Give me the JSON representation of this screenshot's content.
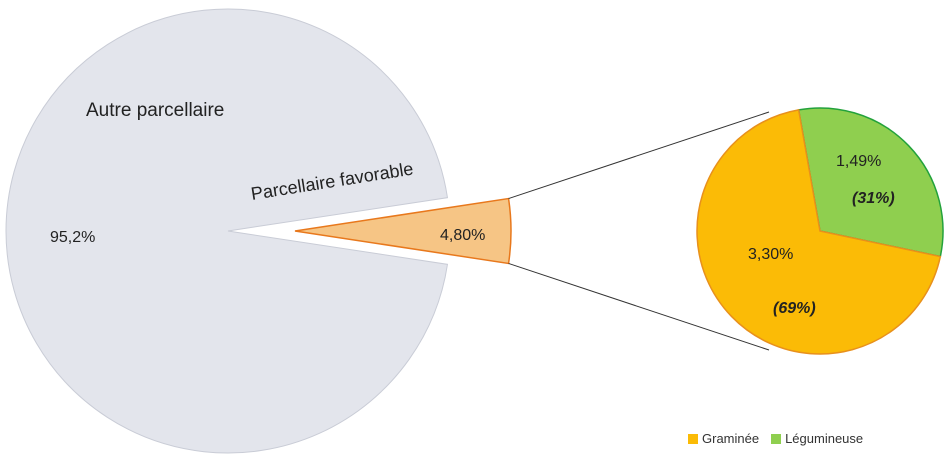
{
  "chart_data": {
    "type": "pie",
    "main_pie": {
      "slices": [
        {
          "label": "Autre parcellaire",
          "value": 95.2,
          "value_label": "95,2%",
          "color": "#e3e5ec",
          "stroke": "#c9ccd6"
        },
        {
          "label": "Parcellaire favorable",
          "value": 4.8,
          "value_label": "4,80%",
          "color": "#f6c585",
          "stroke": "#e8781c"
        }
      ]
    },
    "breakdown_pie": {
      "of": "Parcellaire favorable",
      "slices": [
        {
          "label": "Graminée",
          "value": 3.3,
          "value_label": "3,30%",
          "share_label": "(69%)",
          "color": "#fbbb06",
          "stroke": "#e8901c"
        },
        {
          "label": "Légumineuse",
          "value": 1.49,
          "value_label": "1,49%",
          "share_label": "(31%)",
          "color": "#8fcf4f",
          "stroke": "#23a23b"
        }
      ]
    },
    "legend": {
      "position": "bottom-right",
      "items": [
        {
          "label": "Graminée",
          "color": "#fbbb06"
        },
        {
          "label": "Légumineuse",
          "color": "#8fcf4f"
        }
      ]
    }
  }
}
